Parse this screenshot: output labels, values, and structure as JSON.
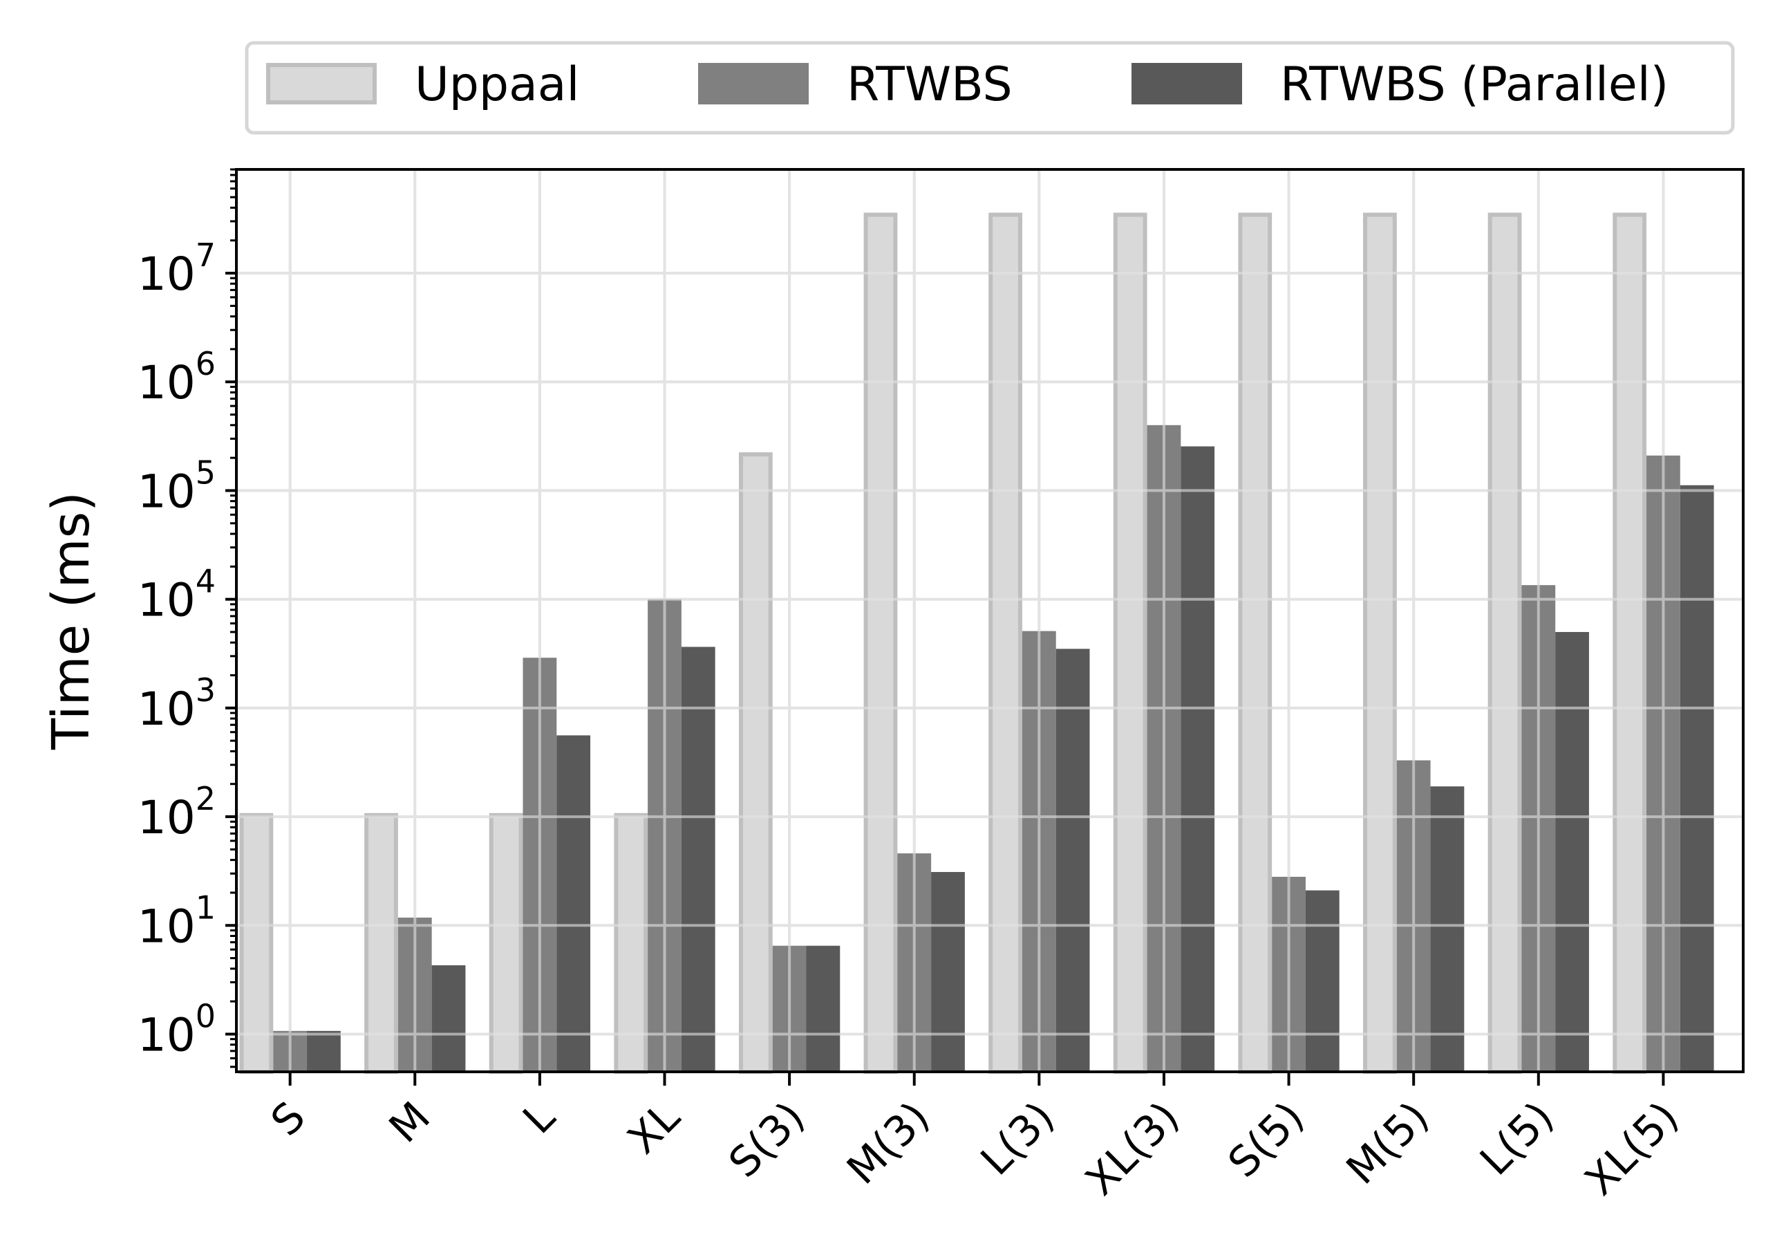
{
  "chart_data": {
    "type": "bar",
    "title": "",
    "xlabel": "",
    "ylabel": "Time (ms)",
    "yscale": "log",
    "ylim": [
      0.45,
      90000000
    ],
    "grid": true,
    "legend_position": "top",
    "categories": [
      "S",
      "M",
      "L",
      "XL",
      "S(3)",
      "M(3)",
      "L(3)",
      "XL(3)",
      "S(5)",
      "M(5)",
      "L(5)",
      "XL(5)"
    ],
    "series": [
      {
        "name": "Uppaal",
        "color": "#d9d9d9",
        "edge_color": "#bfbfbf",
        "values": [
          108,
          108,
          108,
          108,
          225000,
          36000000,
          36000000,
          36000000,
          36000000,
          36000000,
          36000000,
          36000000
        ]
      },
      {
        "name": "RTWBS",
        "color": "#808080",
        "edge_color": "#808080",
        "values": [
          1.07,
          11.8,
          2900,
          10000,
          6.5,
          46,
          5100,
          400000,
          28,
          330,
          13500,
          210000
        ]
      },
      {
        "name": "RTWBS (Parallel)",
        "color": "#595959",
        "edge_color": "#595959",
        "values": [
          1.07,
          4.3,
          560,
          3650,
          6.5,
          31,
          3500,
          255000,
          21,
          190,
          5000,
          112000
        ]
      }
    ],
    "y_tick_labels": [
      {
        "base": "10",
        "exp": "0",
        "value": 1
      },
      {
        "base": "10",
        "exp": "1",
        "value": 10
      },
      {
        "base": "10",
        "exp": "2",
        "value": 100
      },
      {
        "base": "10",
        "exp": "3",
        "value": 1000
      },
      {
        "base": "10",
        "exp": "4",
        "value": 10000
      },
      {
        "base": "10",
        "exp": "5",
        "value": 100000
      },
      {
        "base": "10",
        "exp": "6",
        "value": 1000000
      },
      {
        "base": "10",
        "exp": "7",
        "value": 10000000
      }
    ]
  }
}
